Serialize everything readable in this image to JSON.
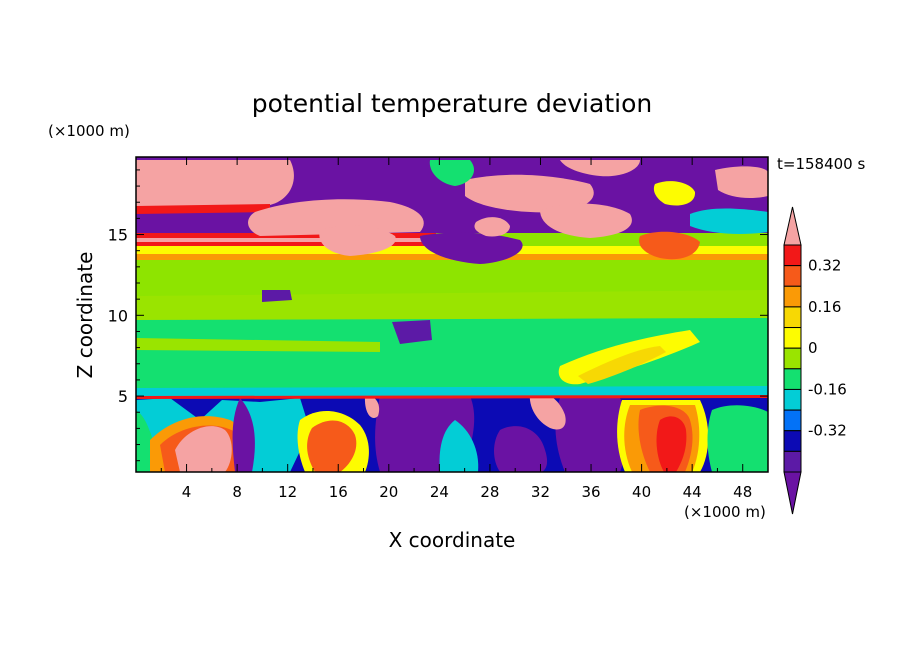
{
  "chart_data": {
    "type": "heatmap",
    "title": "potential temperature deviation",
    "xlabel": "X coordinate",
    "ylabel": "Z coordinate",
    "x_unit": "(×1000 m)",
    "y_unit": "(×1000 m)",
    "time_label": "t=158400 s",
    "xlim": [
      0,
      50
    ],
    "ylim": [
      0.3,
      19.8
    ],
    "xticks": [
      "4",
      "8",
      "12",
      "16",
      "20",
      "24",
      "28",
      "32",
      "36",
      "40",
      "44",
      "48"
    ],
    "yticks": [
      "5",
      "10",
      "15"
    ],
    "colorbar": {
      "levels": [
        -0.4,
        -0.32,
        -0.24,
        -0.16,
        -0.08,
        0,
        0.08,
        0.16,
        0.24,
        0.32,
        0.4
      ],
      "tick_labels": [
        "0.32",
        "0.16",
        "0",
        "-0.16",
        "-0.32"
      ],
      "colors_top_to_bottom": [
        "#f5a3a3",
        "#f21818",
        "#f65a1a",
        "#fa9a06",
        "#f7d804",
        "#fdfc01",
        "#9ae400",
        "#14e070",
        "#03cdd6",
        "#0372f7",
        "#0c0ab4",
        "#5c1aa6",
        "#6a12a3"
      ]
    }
  }
}
